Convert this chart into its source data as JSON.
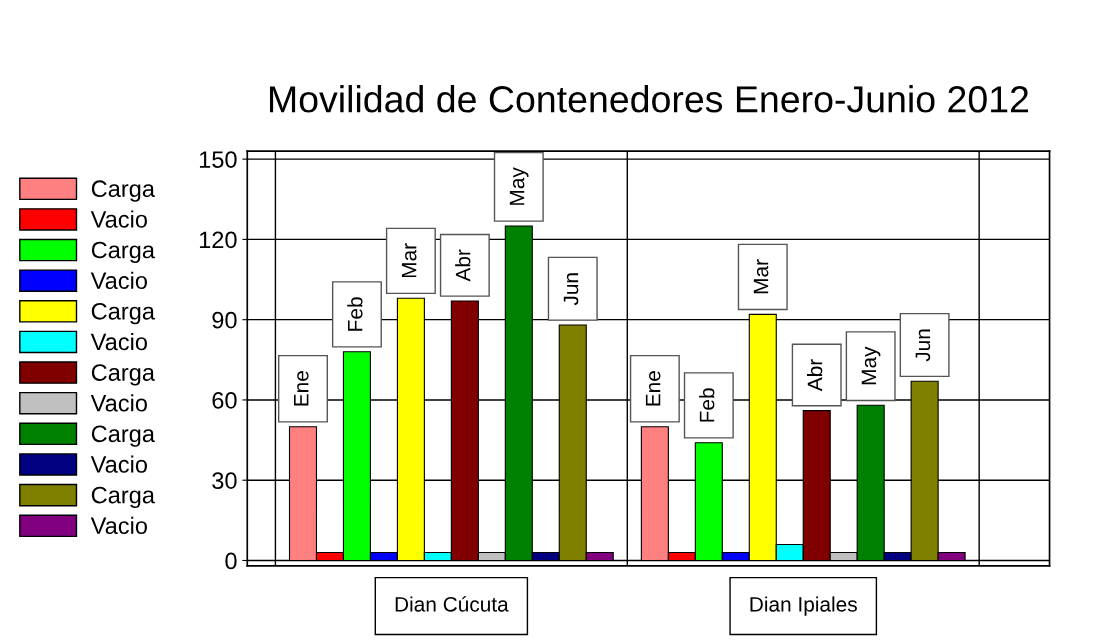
{
  "chart_data": {
    "type": "bar",
    "title": "Movilidad de Contenedores Enero-Junio 2012",
    "categories": [
      "Dian Cúcuta",
      "Dian Ipiales"
    ],
    "series": [
      {
        "name": "Carga",
        "color": "#ff8080",
        "values": [
          50,
          50
        ],
        "value_labels": [
          "Ene",
          "Ene"
        ]
      },
      {
        "name": "Vacio",
        "color": "#ff0000",
        "values": [
          3,
          3
        ]
      },
      {
        "name": "Carga",
        "color": "#00ff00",
        "values": [
          78,
          44
        ],
        "value_labels": [
          "Feb",
          "Feb"
        ]
      },
      {
        "name": "Vacio",
        "color": "#0000ff",
        "values": [
          3,
          3
        ]
      },
      {
        "name": "Carga",
        "color": "#ffff00",
        "values": [
          98,
          92
        ],
        "value_labels": [
          "Mar",
          "Mar"
        ]
      },
      {
        "name": "Vacio",
        "color": "#00ffff",
        "values": [
          3,
          6
        ]
      },
      {
        "name": "Carga",
        "color": "#800000",
        "values": [
          97,
          56
        ],
        "value_labels": [
          "Abr",
          "Abr"
        ]
      },
      {
        "name": "Vacio",
        "color": "#c0c0c0",
        "values": [
          3,
          3
        ]
      },
      {
        "name": "Carga",
        "color": "#008000",
        "values": [
          125,
          58
        ],
        "value_labels": [
          "May",
          "May"
        ]
      },
      {
        "name": "Vacio",
        "color": "#000080",
        "values": [
          3,
          3
        ]
      },
      {
        "name": "Carga",
        "color": "#808000",
        "values": [
          88,
          67
        ],
        "value_labels": [
          "Jun",
          "Jun"
        ]
      },
      {
        "name": "Vacio",
        "color": "#800080",
        "values": [
          3,
          3
        ]
      }
    ],
    "ylim": [
      -2,
      153
    ],
    "yticks": [
      0,
      30,
      60,
      90,
      120,
      150
    ],
    "grid": true,
    "legend": "left"
  }
}
